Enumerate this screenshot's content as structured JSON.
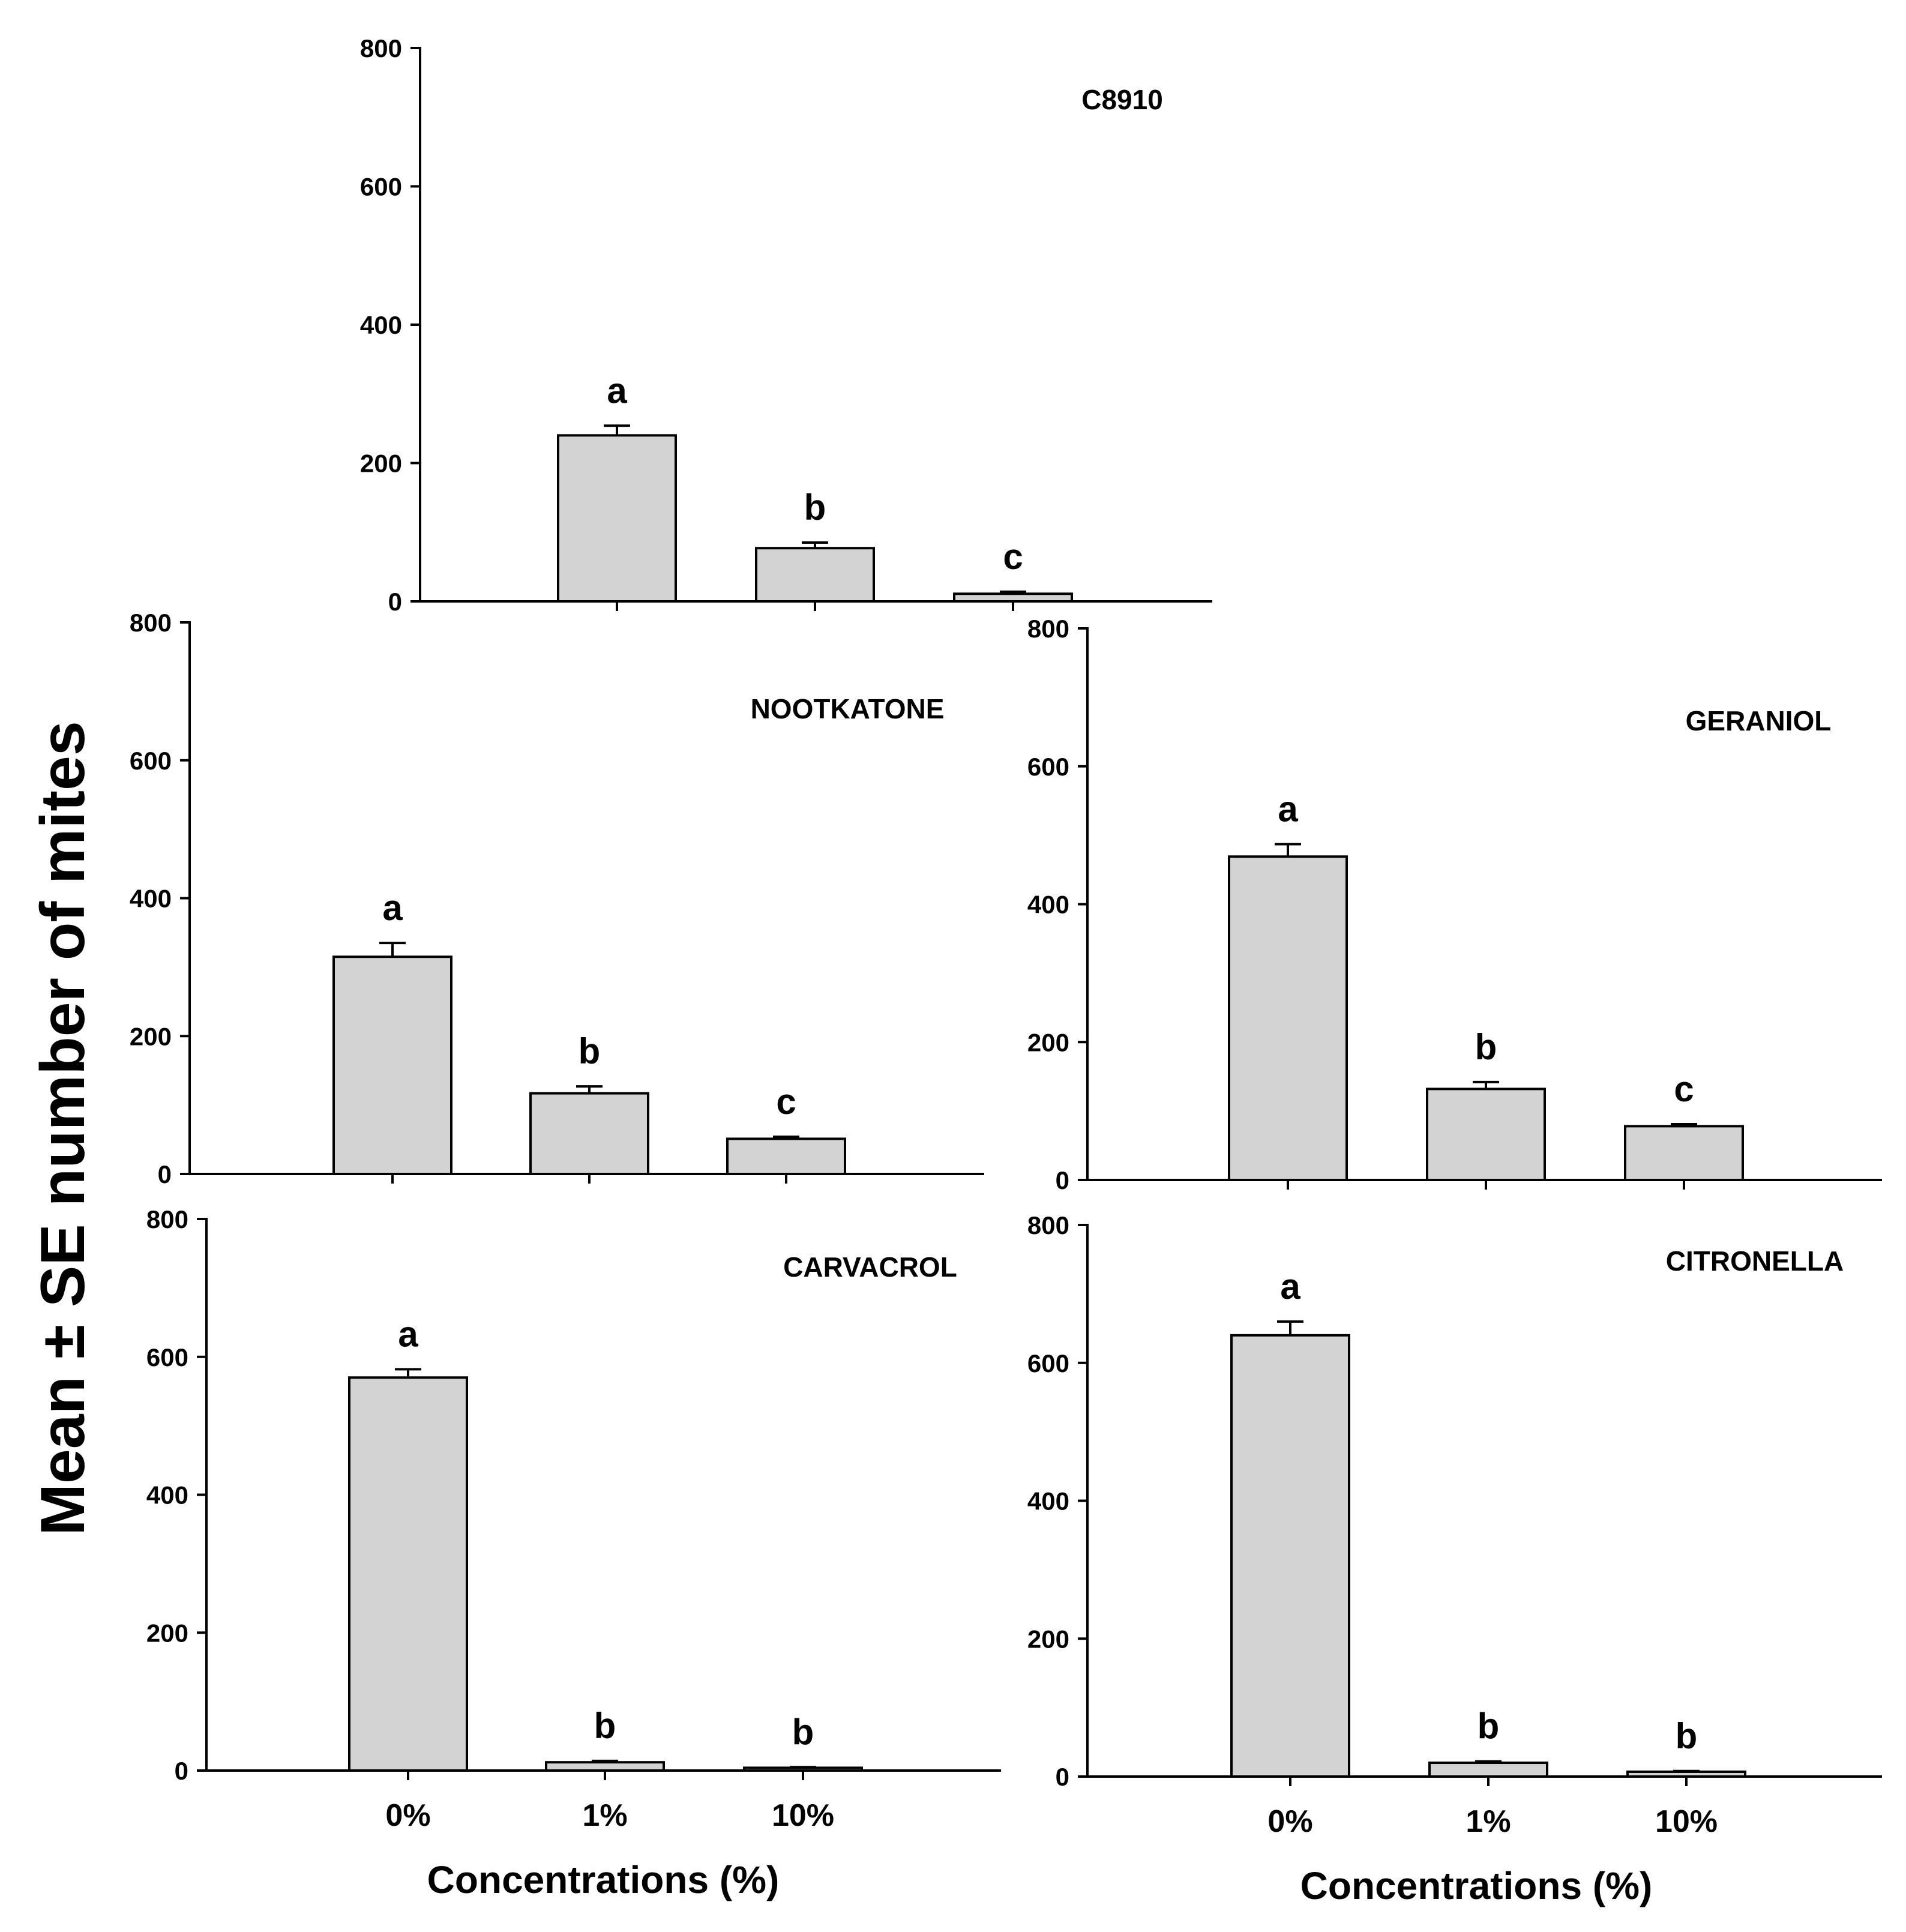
{
  "colors": {
    "bar_fill": "#d3d3d3",
    "stroke": "#000000",
    "background": "#ffffff"
  },
  "y_axis_title": "Mean ± SE number of mites",
  "x_axis_title_left": "Concentrations (%)",
  "x_axis_title_right": "Concentrations (%)",
  "chart_data": [
    {
      "id": "c8910",
      "type": "bar",
      "title": "C8910",
      "categories": [
        "0%",
        "1%",
        "10%"
      ],
      "show_category_labels": false,
      "values": [
        240,
        77,
        11
      ],
      "errors": [
        14,
        8,
        3
      ],
      "letters": [
        "a",
        "b",
        "c"
      ],
      "ylim": [
        0,
        800
      ],
      "yticks": [
        0,
        200,
        400,
        600,
        800
      ],
      "ylabel": "Mean ± SE number of mites",
      "xlabel": ""
    },
    {
      "id": "nootkatone",
      "type": "bar",
      "title": "NOOTKATONE",
      "categories": [
        "0%",
        "1%",
        "10%"
      ],
      "show_category_labels": false,
      "values": [
        315,
        117,
        51
      ],
      "errors": [
        20,
        10,
        3
      ],
      "letters": [
        "a",
        "b",
        "c"
      ],
      "ylim": [
        0,
        800
      ],
      "yticks": [
        0,
        200,
        400,
        600,
        800
      ],
      "ylabel": "Mean ± SE number of mites",
      "xlabel": ""
    },
    {
      "id": "geraniol",
      "type": "bar",
      "title": "GERANIOL",
      "categories": [
        "0%",
        "1%",
        "10%"
      ],
      "show_category_labels": false,
      "values": [
        469,
        132,
        78
      ],
      "errors": [
        18,
        10,
        3
      ],
      "letters": [
        "a",
        "b",
        "c"
      ],
      "ylim": [
        0,
        800
      ],
      "yticks": [
        0,
        200,
        400,
        600,
        800
      ],
      "ylabel": "Mean ± SE number of mites",
      "xlabel": ""
    },
    {
      "id": "carvacrol",
      "type": "bar",
      "title": "CARVACROL",
      "categories": [
        "0%",
        "1%",
        "10%"
      ],
      "show_category_labels": true,
      "values": [
        570,
        12,
        4
      ],
      "errors": [
        12,
        2,
        1
      ],
      "letters": [
        "a",
        "b",
        "b"
      ],
      "ylim": [
        0,
        800
      ],
      "yticks": [
        0,
        200,
        400,
        600,
        800
      ],
      "ylabel": "Mean ± SE number of mites",
      "xlabel": "Concentrations (%)"
    },
    {
      "id": "citronella",
      "type": "bar",
      "title": "CITRONELLA",
      "categories": [
        "0%",
        "1%",
        "10%"
      ],
      "show_category_labels": true,
      "values": [
        640,
        20,
        7
      ],
      "errors": [
        20,
        2,
        1
      ],
      "letters": [
        "a",
        "b",
        "b"
      ],
      "ylim": [
        0,
        800
      ],
      "yticks": [
        0,
        200,
        400,
        600,
        800
      ],
      "ylabel": "Mean ± SE number of mites",
      "xlabel": "Concentrations (%)"
    }
  ]
}
